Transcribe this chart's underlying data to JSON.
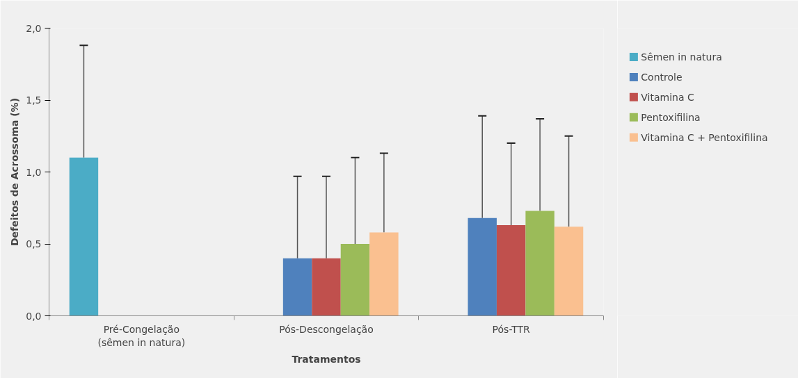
{
  "chart_data": {
    "type": "bar",
    "xlabel": "Tratamentos",
    "ylabel": "Defeitos de Acrossoma (%)",
    "categories": [
      "Pré-Congelação\n(sêmen in natura)",
      "Pós-Descongelação",
      "Pós-TTR"
    ],
    "series": [
      {
        "name": "Sêmen in natura",
        "color": "#4bacc6",
        "values": [
          1.1,
          null,
          null
        ],
        "errors": [
          [
            1.1,
            1.88
          ],
          null,
          null
        ]
      },
      {
        "name": "Controle",
        "color": "#4f81bd",
        "values": [
          null,
          0.4,
          0.68
        ],
        "errors": [
          null,
          [
            0.4,
            0.97
          ],
          [
            0.68,
            1.39
          ]
        ]
      },
      {
        "name": "Vitamina C",
        "color": "#c0504d",
        "values": [
          null,
          0.4,
          0.63
        ],
        "errors": [
          null,
          [
            0.4,
            0.97
          ],
          [
            0.63,
            1.2
          ]
        ]
      },
      {
        "name": "Pentoxifilina",
        "color": "#9bbb59",
        "values": [
          null,
          0.5,
          0.73
        ],
        "errors": [
          null,
          [
            0.5,
            1.1
          ],
          [
            0.73,
            1.37
          ]
        ]
      },
      {
        "name": "Vitamina C + Pentoxifilina",
        "color": "#fac090",
        "values": [
          null,
          0.58,
          0.62
        ],
        "errors": [
          null,
          [
            0.58,
            1.13
          ],
          [
            0.62,
            1.25
          ]
        ]
      }
    ],
    "ylim": [
      0,
      2
    ],
    "yticks": [
      {
        "value": 0,
        "label": "0,0"
      },
      {
        "value": 0.5,
        "label": "0,5"
      },
      {
        "value": 1,
        "label": "1,0"
      },
      {
        "value": 1.5,
        "label": "1,5"
      },
      {
        "value": 2,
        "label": "2,0"
      }
    ],
    "grid": false,
    "legend": "right"
  }
}
